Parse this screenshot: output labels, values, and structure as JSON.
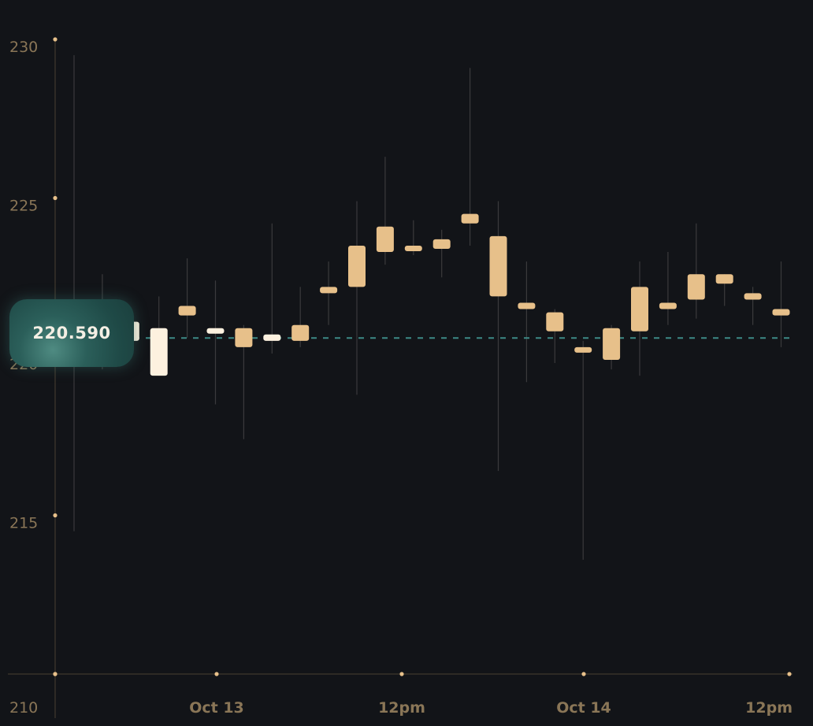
{
  "chart_data": {
    "type": "candlestick",
    "title": "",
    "xlabel": "",
    "ylabel": "",
    "ylim": [
      210,
      230
    ],
    "y_ticks": [
      210,
      215,
      220,
      225,
      230
    ],
    "x_tick_labels": [
      "Oct 13",
      "12pm",
      "Oct 14",
      "12pm"
    ],
    "last_price": 220.59,
    "last_price_label": "220.590",
    "colors": {
      "background": "#121418",
      "up_candle": "#e7c08a",
      "down_candle": "#fdf1df",
      "wick": "#3a3a3c",
      "axis": "#4a4032",
      "tick_dot": "#e7c08a",
      "tick_label": "#8a7657",
      "price_line": "#3d8a86",
      "badge": "#2a5d58"
    },
    "grid": false,
    "candles": [
      {
        "open": 221.0,
        "high": 229.5,
        "low": 214.5,
        "close": 220.3
      },
      {
        "open": 220.5,
        "high": 222.6,
        "low": 219.6,
        "close": 220.9
      },
      {
        "open": 221.1,
        "high": 221.3,
        "low": 220.2,
        "close": 220.5
      },
      {
        "open": 220.9,
        "high": 221.9,
        "low": 219.4,
        "close": 219.4
      },
      {
        "open": 221.3,
        "high": 223.1,
        "low": 220.6,
        "close": 221.6
      },
      {
        "open": 220.9,
        "high": 222.4,
        "low": 218.5,
        "close": 220.8
      },
      {
        "open": 220.3,
        "high": 221.0,
        "low": 217.4,
        "close": 220.9
      },
      {
        "open": 220.7,
        "high": 224.2,
        "low": 220.1,
        "close": 220.5
      },
      {
        "open": 220.5,
        "high": 222.2,
        "low": 220.3,
        "close": 221.0
      },
      {
        "open": 222.0,
        "high": 223.0,
        "low": 221.0,
        "close": 222.2
      },
      {
        "open": 222.2,
        "high": 224.9,
        "low": 218.8,
        "close": 223.5
      },
      {
        "open": 223.3,
        "high": 226.3,
        "low": 222.9,
        "close": 224.1
      },
      {
        "open": 223.4,
        "high": 224.3,
        "low": 223.2,
        "close": 223.5
      },
      {
        "open": 223.4,
        "high": 224.0,
        "low": 222.5,
        "close": 223.7
      },
      {
        "open": 224.2,
        "high": 229.1,
        "low": 223.5,
        "close": 224.5
      },
      {
        "open": 221.9,
        "high": 224.9,
        "low": 216.4,
        "close": 223.8
      },
      {
        "open": 221.5,
        "high": 223.0,
        "low": 219.2,
        "close": 221.7
      },
      {
        "open": 220.8,
        "high": 221.5,
        "low": 219.8,
        "close": 221.4
      },
      {
        "open": 220.2,
        "high": 220.5,
        "low": 213.6,
        "close": 220.3
      },
      {
        "open": 219.9,
        "high": 221.0,
        "low": 219.6,
        "close": 220.9
      },
      {
        "open": 220.8,
        "high": 223.0,
        "low": 219.4,
        "close": 222.2
      },
      {
        "open": 221.5,
        "high": 223.3,
        "low": 221.0,
        "close": 221.7
      },
      {
        "open": 221.8,
        "high": 224.2,
        "low": 221.2,
        "close": 222.6
      },
      {
        "open": 222.3,
        "high": 222.6,
        "low": 221.6,
        "close": 222.6
      },
      {
        "open": 221.8,
        "high": 222.2,
        "low": 221.0,
        "close": 222.0
      },
      {
        "open": 221.3,
        "high": 223.0,
        "low": 220.3,
        "close": 221.5
      }
    ]
  }
}
